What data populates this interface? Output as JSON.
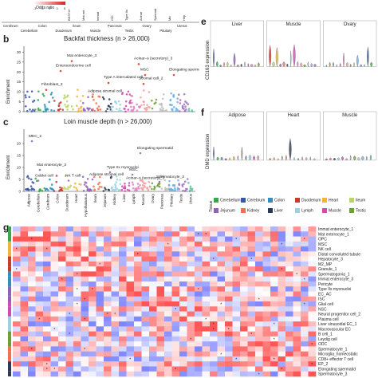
{
  "panel_a": {
    "odds_ratio_label": "Odds ratio",
    "odds_ratio_ticks": [
      "-3",
      "-1",
      "1",
      "3",
      "5"
    ],
    "top_tissue_labels": [
      "BEST4+",
      "Mat ent",
      "Immat",
      "ISC",
      "Type IIx",
      "Acinar",
      "Spermat",
      "Mic",
      "Hep"
    ],
    "tissues": [
      "Cerebrum",
      "Cerebellum",
      "Colon",
      "Duodenum",
      "Ileum",
      "Muscle",
      "Type IIa",
      "Type IIx",
      "Acinar",
      "Ovary",
      "Pancreas",
      "Pituitary",
      "Testis",
      "Uterus"
    ],
    "groups": [
      "Cerebrum",
      "Cerebellum",
      "Colon",
      "Duodenum",
      "Ileum",
      "Muscle",
      "Pancreas",
      "Testis",
      "Ovary",
      "Pituitary",
      "Uterus"
    ]
  },
  "panel_b": {
    "letter": "b",
    "title": "Backfat thickness (n > 26,000)",
    "ylabel": "Enrichment",
    "yticks": [
      "0",
      "5",
      "10",
      "15",
      "20",
      "25",
      "30"
    ],
    "annotations": [
      "Mat enterocyte_3",
      "Acinar–s (secretory)_3",
      "Enteroendocrine cell",
      "MSC",
      "Elongating spermatid",
      "Type A intercalated cell",
      "Stromal cell_2",
      "Fibroblast_3",
      "Adipose stromal cell"
    ]
  },
  "panel_c": {
    "letter": "c",
    "title": "Loin muscle depth (n > 26,000)",
    "ylabel": "Enrichment",
    "yticks": [
      "0",
      "5",
      "10",
      "15",
      "20"
    ],
    "annotations": [
      "MEC_2",
      "Elongating spermatid",
      "Mat enterocyte_3",
      "Type IIx myonuclei",
      "MSC",
      "Goblet cell",
      "NK T cell",
      "Adipose stromal cell",
      "Acinar–s (secretory)_3",
      "Spermatocyte_3"
    ],
    "tissues": [
      "Adipose",
      "Cerebellum",
      "Cerebrum",
      "Colon",
      "Duodenum",
      "Heart",
      "Hypothalamus",
      "Ileum",
      "Jejunum",
      "Kidney",
      "Liver",
      "Lymph",
      "Muscle",
      "Ovary",
      "Pancreas",
      "Pituitary",
      "Testis",
      "Uterus"
    ]
  },
  "panel_e": {
    "letter": "e",
    "ylabel": "CD163 expression",
    "groups": [
      "Liver",
      "Muscle",
      "Ovary"
    ]
  },
  "panel_f": {
    "letter": "f",
    "ylabel": "DMD expression",
    "groups": [
      "Adipose",
      "Heart",
      "Muscle"
    ]
  },
  "legend": {
    "title": "Tissue",
    "items": [
      {
        "name": "Cerebellum",
        "color": "#3aa64a"
      },
      {
        "name": "Cerebrum",
        "color": "#3a56a6"
      },
      {
        "name": "Colon",
        "color": "#2e8fb8"
      },
      {
        "name": "Duodenum",
        "color": "#c83a2a"
      },
      {
        "name": "Heart",
        "color": "#f0b43a"
      },
      {
        "name": "Ileum",
        "color": "#b8d36a"
      },
      {
        "name": "Jejunum",
        "color": "#8f62b8"
      },
      {
        "name": "Kidney",
        "color": "#f07050"
      },
      {
        "name": "Liver",
        "color": "#2a3a56"
      },
      {
        "name": "Lymph",
        "color": "#9ad0e0"
      },
      {
        "name": "Muscle",
        "color": "#d04ab0"
      },
      {
        "name": "Testis",
        "color": "#6aa030"
      }
    ]
  },
  "panel_g": {
    "letter": "g",
    "row_labels": [
      "Immat enterocyte_1",
      "Mat enterocyte_1",
      "OPC",
      "MSC",
      "NK cell",
      "Distal convoluted tubule",
      "Hepatocyte_3",
      "M2_MP",
      "Granule_1",
      "Spermatogonia_1",
      "Immat enterocyte_3",
      "Pericyte",
      "Type IIx myonuclei",
      "EC_AC",
      "ISC",
      "Glial cell",
      "NSC",
      "Neural progenitor cell_2",
      "Plasma cell",
      "Liver sinusoidal EC_1",
      "Macrovascular EC",
      "B cell_1",
      "Leydig cell",
      "ODC",
      "Spermatocyte_1",
      "Microglia_homeostatic",
      "CD8+ effector T cell",
      "EP_2",
      "Elongating spermatid",
      "Spermatocyte_3"
    ],
    "ncols": 40
  }
}
